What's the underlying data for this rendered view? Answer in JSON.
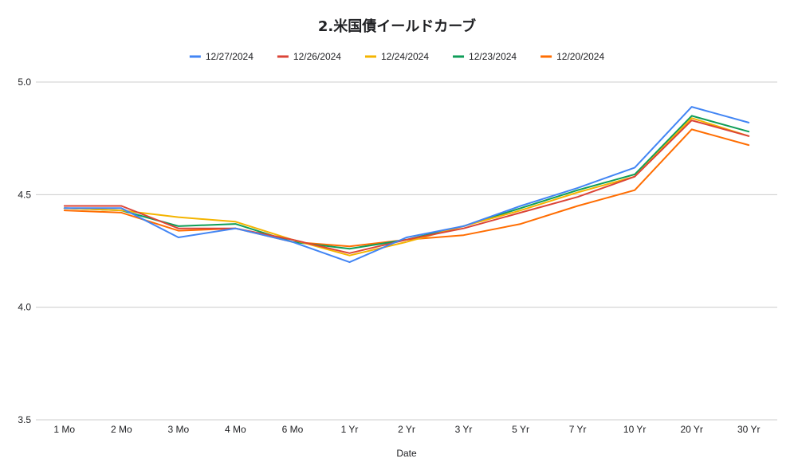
{
  "chart_data": {
    "type": "line",
    "title": "2.米国債イールドカーブ",
    "xlabel": "Date",
    "ylabel": "",
    "categories": [
      "1 Mo",
      "2 Mo",
      "3 Mo",
      "4 Mo",
      "6 Mo",
      "1 Yr",
      "2 Yr",
      "3 Yr",
      "5 Yr",
      "7 Yr",
      "10 Yr",
      "20 Yr",
      "30 Yr"
    ],
    "ylim": [
      3.5,
      5.0
    ],
    "yticks": [
      "3.5",
      "4.0",
      "4.5",
      "5.0"
    ],
    "grid": true,
    "legend_position": "top",
    "series": [
      {
        "name": "12/27/2024",
        "color": "#4285f4",
        "values": [
          4.44,
          4.44,
          4.31,
          4.35,
          4.29,
          4.2,
          4.31,
          4.36,
          4.45,
          4.53,
          4.62,
          4.89,
          4.82
        ]
      },
      {
        "name": "12/26/2024",
        "color": "#db4437",
        "values": [
          4.45,
          4.45,
          4.35,
          4.35,
          4.3,
          4.24,
          4.3,
          4.35,
          4.42,
          4.49,
          4.58,
          4.83,
          4.76
        ]
      },
      {
        "name": "12/24/2024",
        "color": "#f4b400",
        "values": [
          4.44,
          4.43,
          4.4,
          4.38,
          4.3,
          4.23,
          4.29,
          4.36,
          4.43,
          4.51,
          4.58,
          4.84,
          4.76
        ]
      },
      {
        "name": "12/23/2024",
        "color": "#0f9d58",
        "values": [
          4.44,
          4.43,
          4.36,
          4.37,
          4.29,
          4.26,
          4.3,
          4.36,
          4.44,
          4.52,
          4.59,
          4.85,
          4.78
        ]
      },
      {
        "name": "12/20/2024",
        "color": "#ff6d01",
        "values": [
          4.43,
          4.42,
          4.34,
          4.35,
          4.29,
          4.27,
          4.3,
          4.32,
          4.37,
          4.45,
          4.52,
          4.79,
          4.72
        ]
      }
    ]
  }
}
